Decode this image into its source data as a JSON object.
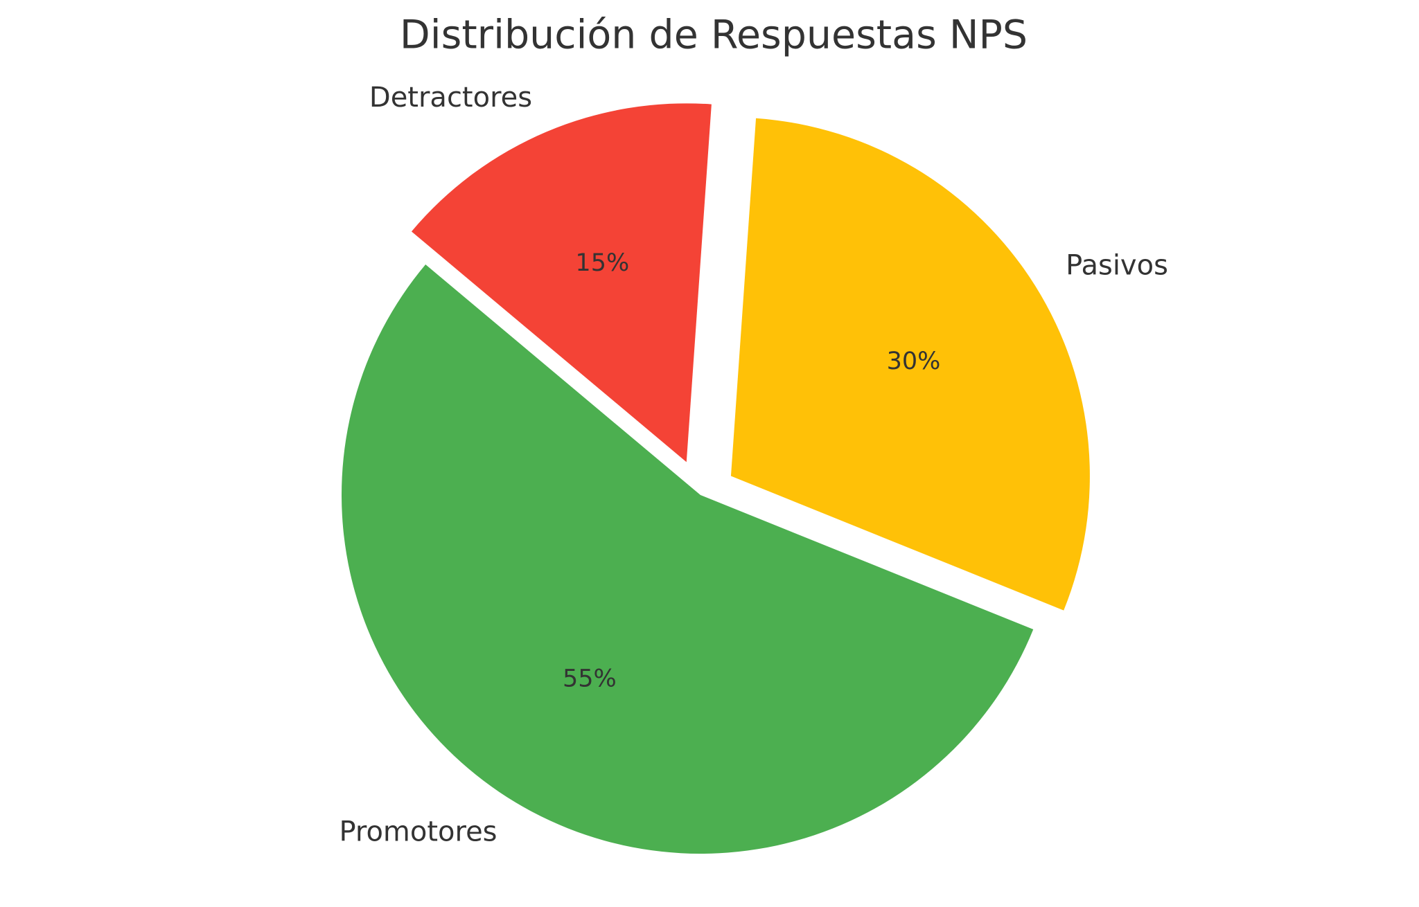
{
  "chart_data": {
    "type": "pie",
    "title": "Distribución de Respuestas NPS",
    "categories": [
      "Promotores",
      "Pasivos",
      "Detractores"
    ],
    "values": [
      55,
      30,
      15
    ],
    "value_labels": [
      "55%",
      "30%",
      "15%"
    ],
    "colors": [
      "#4caf50",
      "#ffc107",
      "#f44336"
    ],
    "explode": [
      0,
      0.1,
      0.1
    ]
  }
}
